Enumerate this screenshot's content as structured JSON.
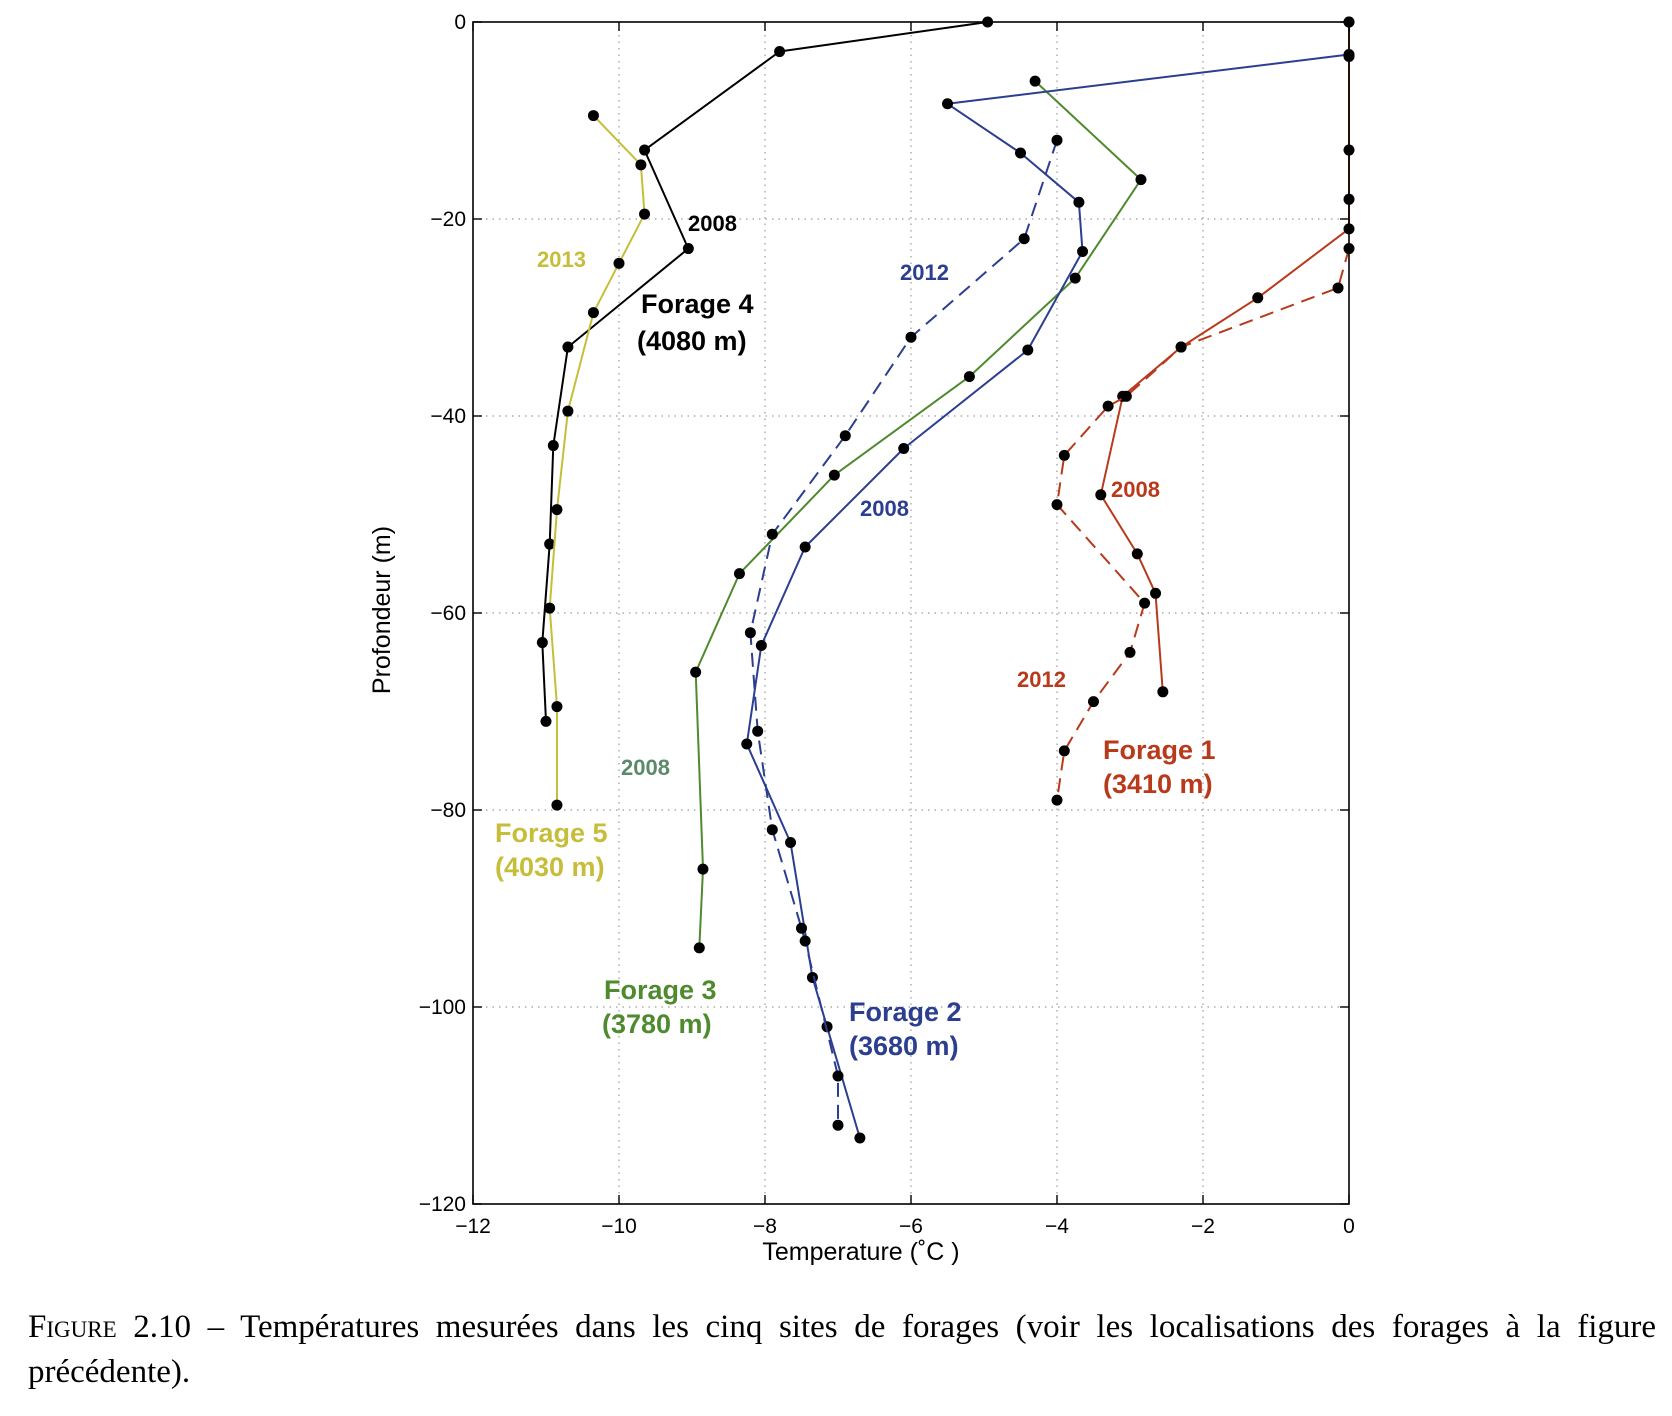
{
  "chart_data": {
    "type": "line",
    "title": "",
    "xlabel": "Temperature",
    "xlabel_unit": "(˚C )",
    "ylabel": "Profondeur (m)",
    "xlim": [
      -12,
      0
    ],
    "ylim": [
      -120,
      0
    ],
    "xticks": [
      -12,
      -10,
      -8,
      -6,
      -4,
      -2,
      0
    ],
    "yticks": [
      0,
      -20,
      -40,
      -60,
      -80,
      -100,
      -120
    ],
    "xtick_labels": [
      "−12",
      "−10",
      "−8",
      "−6",
      "−4",
      "−2",
      "0"
    ],
    "ytick_labels": [
      "0",
      "−20",
      "−40",
      "−60",
      "−80",
      "−100",
      "−120"
    ],
    "grid": true,
    "legend": "none",
    "series": [
      {
        "name": "2008",
        "site": "Forage 4",
        "color": "#000000",
        "dash": "solid",
        "x": [
          -4.95,
          -7.8,
          -9.65,
          -9.05,
          -10.7,
          -10.9,
          -10.95,
          -11.05,
          -11.0
        ],
        "y": [
          0,
          -3,
          -13,
          -23,
          -33,
          -43,
          -53,
          -63,
          -71
        ]
      },
      {
        "name": "2013",
        "site": "Forage 5",
        "color": "#c6be3a",
        "dash": "solid",
        "x": [
          -10.35,
          -9.7,
          -9.65,
          -10.0,
          -10.35,
          -10.7,
          -10.85,
          -10.95,
          -10.85,
          -10.85
        ],
        "y": [
          -9.5,
          -14.5,
          -19.5,
          -24.5,
          -29.5,
          -39.5,
          -49.5,
          -59.5,
          -69.5,
          -79.5
        ]
      },
      {
        "name": "2008",
        "site": "Forage 3",
        "color": "#4f8a2e",
        "dash": "solid",
        "x": [
          -4.3,
          -2.85,
          -3.75,
          -5.2,
          -7.05,
          -8.35,
          -8.95,
          -8.85,
          -8.9
        ],
        "y": [
          -6,
          -16,
          -26,
          -36,
          -46,
          -56,
          -66,
          -86,
          -94
        ]
      },
      {
        "name": "2008",
        "site": "Forage 2",
        "color": "#2b3e8f",
        "dash": "solid",
        "x": [
          0,
          0,
          -5.5,
          -4.5,
          -3.7,
          -3.65,
          -4.4,
          -6.1,
          -7.45,
          -8.05,
          -8.25,
          -7.65,
          -7.35,
          -7.15,
          -6.7
        ],
        "y": [
          0,
          -3.3,
          -8.3,
          -13.3,
          -18.3,
          -23.3,
          -33.3,
          -43.3,
          -53.3,
          -63.3,
          -73.3,
          -83.3,
          -97,
          -102,
          -113.3
        ]
      },
      {
        "name": "2012",
        "site": "Forage 2",
        "color": "#2b3e8f",
        "dash": "dashed",
        "x": [
          -4.0,
          -4.45,
          -6.0,
          -6.9,
          -7.9,
          -8.2,
          -8.1,
          -7.9,
          -7.5,
          -7.45,
          -7.0,
          -7.0
        ],
        "y": [
          -12,
          -22,
          -32,
          -42,
          -52,
          -62,
          -72,
          -82,
          -92,
          -93.3,
          -107,
          -112
        ]
      },
      {
        "name": "2008",
        "site": "Forage 1",
        "color": "#b83a1b",
        "dash": "solid",
        "x": [
          0,
          0,
          0,
          0,
          0,
          -1.25,
          -2.3,
          -3.1,
          -3.4,
          -2.9,
          -2.65,
          -2.55
        ],
        "y": [
          0,
          -3.5,
          -13,
          -18,
          -21,
          -28,
          -33,
          -38,
          -48,
          -54,
          -58,
          -68
        ]
      },
      {
        "name": "2012",
        "site": "Forage 1",
        "color": "#b83a1b",
        "dash": "dashed",
        "x": [
          0,
          -0.15,
          -2.3,
          -3.05,
          -3.3,
          -3.9,
          -4.0,
          -2.8,
          -3.0,
          -3.5,
          -3.9,
          -4.0
        ],
        "y": [
          -23,
          -27,
          -33,
          -38,
          -39,
          -44,
          -49,
          -59,
          -64,
          -69,
          -74,
          -79
        ]
      }
    ],
    "annotations": {
      "f4_year": {
        "text": "2008",
        "color": "#000000"
      },
      "f4_site": {
        "text": "Forage 4",
        "color": "#000000"
      },
      "f4_alt": {
        "text": "(4080 m)",
        "color": "#000000"
      },
      "f5_year": {
        "text": "2013",
        "color": "#c6be3a"
      },
      "f5_site": {
        "text": "Forage 5",
        "color": "#c6be3a"
      },
      "f5_alt": {
        "text": "(4030 m)",
        "color": "#c6be3a"
      },
      "f3_year": {
        "text": "2008",
        "color": "#5a8a6a"
      },
      "f3_site": {
        "text": "Forage 3",
        "color": "#4f8a2e"
      },
      "f3_alt": {
        "text": "(3780 m)",
        "color": "#4f8a2e"
      },
      "f2_year2012": {
        "text": "2012",
        "color": "#2b3e8f"
      },
      "f2_year2008": {
        "text": "2008",
        "color": "#2b3e8f"
      },
      "f2_site": {
        "text": "Forage 2",
        "color": "#2b3e8f"
      },
      "f2_alt": {
        "text": "(3680 m)",
        "color": "#2b3e8f"
      },
      "f1_year2008": {
        "text": "2008",
        "color": "#b83a1b"
      },
      "f1_year2012": {
        "text": "2012",
        "color": "#b83a1b"
      },
      "f1_site": {
        "text": "Forage 1",
        "color": "#b83a1b"
      },
      "f1_alt": {
        "text": "(3410 m)",
        "color": "#b83a1b"
      }
    }
  },
  "caption": {
    "prefix": "Figure 2.10",
    "text": " – Températures mesurées dans les cinq sites de forages (voir les localisations des forages à la figure précédente)."
  }
}
